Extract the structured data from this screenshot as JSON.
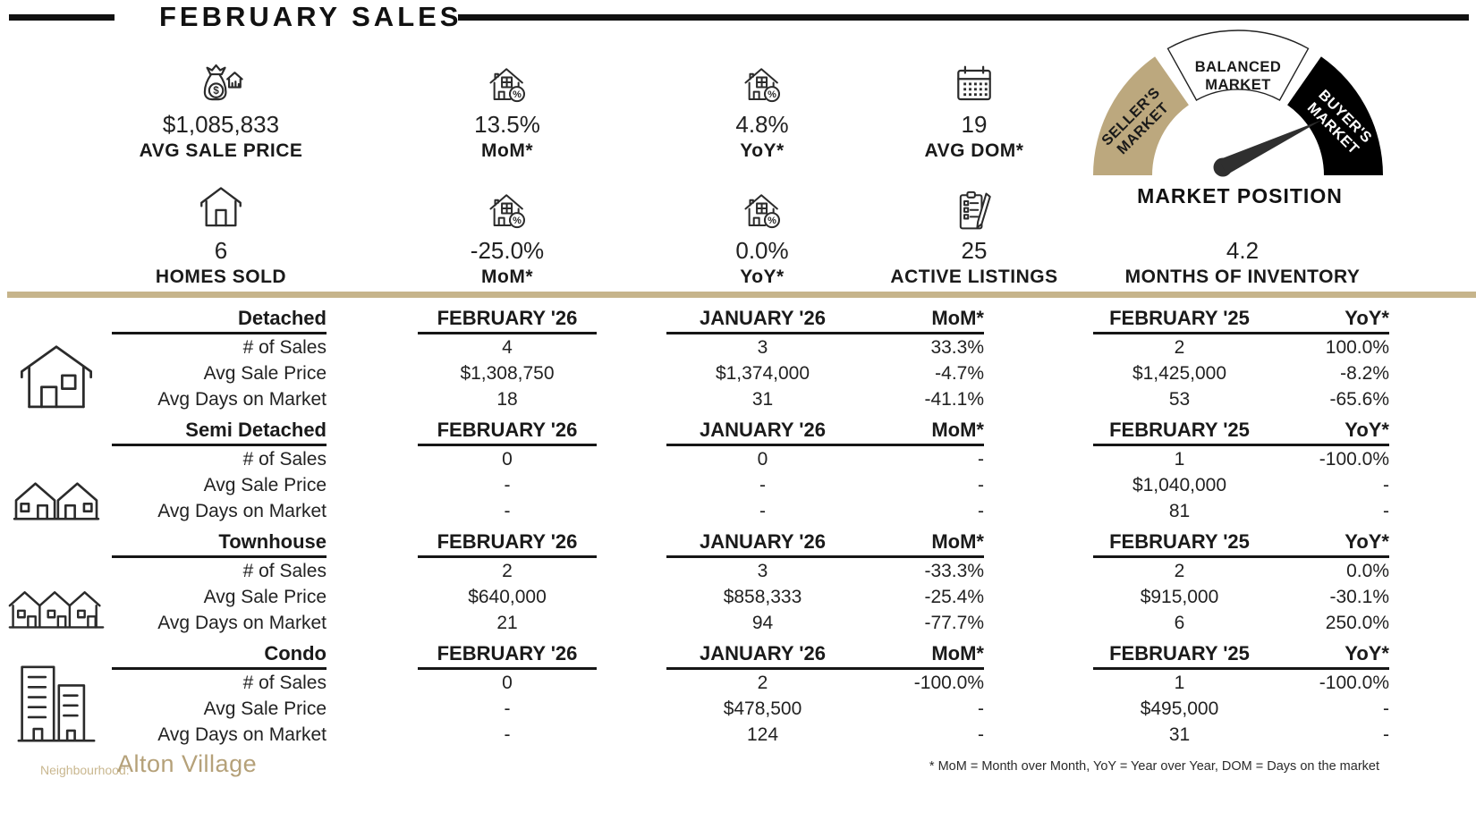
{
  "title": "FEBRUARY SALES",
  "stats": {
    "row1": [
      {
        "icon": "money-bag-house",
        "value": "$1,085,833",
        "label": "AVG SALE PRICE"
      },
      {
        "icon": "house-percent",
        "value": "13.5%",
        "label": "MoM*"
      },
      {
        "icon": "house-percent",
        "value": "4.8%",
        "label": "YoY*"
      },
      {
        "icon": "calendar",
        "value": "19",
        "label": "AVG DOM*"
      }
    ],
    "row2": [
      {
        "icon": "house",
        "value": "6",
        "label": "HOMES SOLD"
      },
      {
        "icon": "house-percent",
        "value": "-25.0%",
        "label": "MoM*"
      },
      {
        "icon": "house-percent",
        "value": "0.0%",
        "label": "YoY*"
      },
      {
        "icon": "clipboard-pencil",
        "value": "25",
        "label": "ACTIVE LISTINGS"
      },
      {
        "icon": "",
        "value": "4.2",
        "label": "MONTHS OF INVENTORY"
      }
    ]
  },
  "gauge": {
    "title": "MARKET POSITION",
    "segments": [
      {
        "label": "SELLER'S MARKET",
        "lines": [
          "SELLER'S",
          "MARKET"
        ],
        "color": "#bca87e"
      },
      {
        "label": "BALANCED MARKET",
        "lines": [
          "BALANCED",
          "MARKET"
        ],
        "color": "#ffffff"
      },
      {
        "label": "BUYER'S MARKET",
        "lines": [
          "BUYER'S",
          "MARKET"
        ],
        "color": "#000000"
      }
    ],
    "needle_points_to": "BUYER'S MARKET"
  },
  "table": {
    "row_labels": [
      "# of Sales",
      "Avg Sale Price",
      "Avg Days on Market"
    ],
    "columns": [
      "FEBRUARY '26",
      "JANUARY '26",
      "MoM*",
      "FEBRUARY '25",
      "YoY*"
    ],
    "sections": [
      {
        "name": "Detached",
        "icon": "detached-house",
        "rows": [
          [
            "4",
            "3",
            "33.3%",
            "2",
            "100.0%"
          ],
          [
            "$1,308,750",
            "$1,374,000",
            "-4.7%",
            "$1,425,000",
            "-8.2%"
          ],
          [
            "18",
            "31",
            "-41.1%",
            "53",
            "-65.6%"
          ]
        ]
      },
      {
        "name": "Semi Detached",
        "icon": "semi-detached-house",
        "rows": [
          [
            "0",
            "0",
            "-",
            "1",
            "-100.0%"
          ],
          [
            "-",
            "-",
            "-",
            "$1,040,000",
            "-"
          ],
          [
            "-",
            "-",
            "-",
            "81",
            "-"
          ]
        ]
      },
      {
        "name": "Townhouse",
        "icon": "townhouse",
        "rows": [
          [
            "2",
            "3",
            "-33.3%",
            "2",
            "0.0%"
          ],
          [
            "$640,000",
            "$858,333",
            "-25.4%",
            "$915,000",
            "-30.1%"
          ],
          [
            "21",
            "94",
            "-77.7%",
            "6",
            "250.0%"
          ]
        ]
      },
      {
        "name": "Condo",
        "icon": "condo-buildings",
        "rows": [
          [
            "0",
            "2",
            "-100.0%",
            "1",
            "-100.0%"
          ],
          [
            "-",
            "$478,500",
            "-",
            "$495,000",
            "-"
          ],
          [
            "-",
            "124",
            "-",
            "31",
            "-"
          ]
        ]
      }
    ]
  },
  "footer": {
    "neighbourhood_label": "Neighbourhood:",
    "neighbourhood_value": "Alton Village",
    "footnote": "* MoM = Month over Month, YoY = Year over Year, DOM = Days on the market"
  },
  "colors": {
    "accent": "#bca87e",
    "divider": "#c6b48b",
    "ink": "#1a1a1a"
  }
}
